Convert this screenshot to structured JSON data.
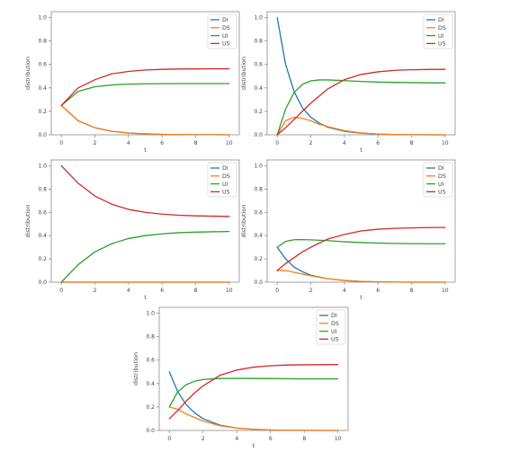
{
  "colors": {
    "DI": "#1f77b4",
    "DS": "#ff7f0e",
    "UI": "#2ca02c",
    "US": "#d62728",
    "axes_frame": "#8c8c8c",
    "text": "#444444"
  },
  "chart_data": [
    {
      "type": "line",
      "xlabel": "t",
      "ylabel": "distribution",
      "xlim": [
        -0.6,
        10.6
      ],
      "ylim": [
        0,
        1.05
      ],
      "xticks": [
        0,
        2,
        4,
        6,
        8,
        10
      ],
      "xtick_labels": [
        "0",
        "2",
        "4",
        "6",
        "8",
        "10"
      ],
      "yticks": [
        0,
        0.2,
        0.4,
        0.6,
        0.8,
        1.0
      ],
      "ytick_labels": [
        "0.0",
        "0.2",
        "0.4",
        "0.6",
        "0.8",
        "1.0"
      ],
      "grid": false,
      "legend": "top-right",
      "x": [
        0,
        1,
        2,
        3,
        4,
        5,
        6,
        7,
        8,
        9,
        10
      ],
      "series": [
        {
          "name": "DI",
          "values": [
            0.25,
            0.12,
            0.06,
            0.03,
            0.015,
            0.008,
            0.004,
            0.002,
            0.001,
            0.001,
            0.0
          ]
        },
        {
          "name": "DS",
          "values": [
            0.25,
            0.12,
            0.06,
            0.03,
            0.015,
            0.008,
            0.004,
            0.002,
            0.001,
            0.001,
            0.0
          ]
        },
        {
          "name": "UI",
          "values": [
            0.25,
            0.37,
            0.41,
            0.425,
            0.432,
            0.435,
            0.436,
            0.437,
            0.437,
            0.437,
            0.437
          ]
        },
        {
          "name": "US",
          "values": [
            0.25,
            0.4,
            0.47,
            0.52,
            0.54,
            0.553,
            0.558,
            0.561,
            0.562,
            0.563,
            0.563
          ]
        }
      ]
    },
    {
      "type": "line",
      "xlabel": "t",
      "ylabel": "distribution",
      "xlim": [
        -0.6,
        10.6
      ],
      "ylim": [
        0,
        1.05
      ],
      "xticks": [
        0,
        2,
        4,
        6,
        8,
        10
      ],
      "xtick_labels": [
        "0",
        "2",
        "4",
        "6",
        "8",
        "10"
      ],
      "yticks": [
        0,
        0.2,
        0.4,
        0.6,
        0.8,
        1.0
      ],
      "ytick_labels": [
        "0.0",
        "0.2",
        "0.4",
        "0.6",
        "0.8",
        "1.0"
      ],
      "grid": false,
      "legend": "top-right",
      "x": [
        0,
        0.5,
        1,
        1.5,
        2,
        2.5,
        3,
        4,
        5,
        6,
        7,
        8,
        9,
        10
      ],
      "series": [
        {
          "name": "DI",
          "values": [
            1.0,
            0.6,
            0.37,
            0.23,
            0.15,
            0.1,
            0.065,
            0.03,
            0.014,
            0.006,
            0.003,
            0.001,
            0.0,
            0.0
          ]
        },
        {
          "name": "DS",
          "values": [
            0.0,
            0.12,
            0.15,
            0.14,
            0.12,
            0.09,
            0.07,
            0.035,
            0.016,
            0.007,
            0.003,
            0.001,
            0.0,
            0.0
          ]
        },
        {
          "name": "UI",
          "values": [
            0.0,
            0.22,
            0.36,
            0.43,
            0.46,
            0.468,
            0.468,
            0.462,
            0.455,
            0.45,
            0.447,
            0.445,
            0.443,
            0.442
          ]
        },
        {
          "name": "US",
          "values": [
            0.0,
            0.06,
            0.13,
            0.2,
            0.27,
            0.33,
            0.39,
            0.47,
            0.515,
            0.537,
            0.55,
            0.555,
            0.557,
            0.558
          ]
        }
      ]
    },
    {
      "type": "line",
      "xlabel": "t",
      "ylabel": "distribution",
      "xlim": [
        -0.6,
        10.6
      ],
      "ylim": [
        0,
        1.05
      ],
      "xticks": [
        0,
        2,
        4,
        6,
        8,
        10
      ],
      "xtick_labels": [
        "0",
        "2",
        "4",
        "6",
        "8",
        "10"
      ],
      "yticks": [
        0,
        0.2,
        0.4,
        0.6,
        0.8,
        1.0
      ],
      "ytick_labels": [
        "0.0",
        "0.2",
        "0.4",
        "0.6",
        "0.8",
        "1.0"
      ],
      "grid": false,
      "legend": "top-right",
      "x": [
        0,
        1,
        2,
        3,
        4,
        5,
        6,
        7,
        8,
        9,
        10
      ],
      "series": [
        {
          "name": "DI",
          "values": [
            0,
            0,
            0,
            0,
            0,
            0,
            0,
            0,
            0,
            0,
            0
          ]
        },
        {
          "name": "DS",
          "values": [
            0,
            0,
            0,
            0,
            0,
            0,
            0,
            0,
            0,
            0,
            0
          ]
        },
        {
          "name": "UI",
          "values": [
            0.0,
            0.15,
            0.26,
            0.33,
            0.375,
            0.4,
            0.415,
            0.425,
            0.43,
            0.433,
            0.435
          ]
        },
        {
          "name": "US",
          "values": [
            1.0,
            0.85,
            0.74,
            0.67,
            0.625,
            0.6,
            0.585,
            0.575,
            0.57,
            0.567,
            0.565
          ]
        }
      ]
    },
    {
      "type": "line",
      "xlabel": "t",
      "ylabel": "distribution",
      "xlim": [
        -0.6,
        10.6
      ],
      "ylim": [
        0,
        1.05
      ],
      "xticks": [
        0,
        2,
        4,
        6,
        8,
        10
      ],
      "xtick_labels": [
        "0",
        "2",
        "4",
        "6",
        "8",
        "10"
      ],
      "yticks": [
        0,
        0.2,
        0.4,
        0.6,
        0.8,
        1.0
      ],
      "ytick_labels": [
        "0.0",
        "0.2",
        "0.4",
        "0.6",
        "0.8",
        "1.0"
      ],
      "grid": false,
      "legend": "top-right",
      "x": [
        0,
        0.5,
        1,
        1.5,
        2,
        3,
        4,
        5,
        6,
        7,
        8,
        9,
        10
      ],
      "series": [
        {
          "name": "DI",
          "values": [
            0.3,
            0.2,
            0.13,
            0.09,
            0.06,
            0.03,
            0.014,
            0.006,
            0.003,
            0.001,
            0.0,
            0.0,
            0.0
          ]
        },
        {
          "name": "DS",
          "values": [
            0.1,
            0.1,
            0.085,
            0.07,
            0.055,
            0.03,
            0.015,
            0.007,
            0.003,
            0.001,
            0.0,
            0.0,
            0.0
          ]
        },
        {
          "name": "UI",
          "values": [
            0.3,
            0.35,
            0.365,
            0.366,
            0.364,
            0.357,
            0.347,
            0.34,
            0.336,
            0.333,
            0.331,
            0.33,
            0.33
          ]
        },
        {
          "name": "US",
          "values": [
            0.1,
            0.16,
            0.21,
            0.26,
            0.3,
            0.37,
            0.41,
            0.44,
            0.455,
            0.462,
            0.466,
            0.469,
            0.47
          ]
        }
      ]
    },
    {
      "type": "line",
      "xlabel": "t",
      "ylabel": "distribution",
      "xlim": [
        -0.6,
        10.6
      ],
      "ylim": [
        0,
        1.05
      ],
      "xticks": [
        0,
        2,
        4,
        6,
        8,
        10
      ],
      "xtick_labels": [
        "0",
        "2",
        "4",
        "6",
        "8",
        "10"
      ],
      "yticks": [
        0,
        0.2,
        0.4,
        0.6,
        0.8,
        1.0
      ],
      "ytick_labels": [
        "0.0",
        "0.2",
        "0.4",
        "0.6",
        "0.8",
        "1.0"
      ],
      "grid": false,
      "legend": "top-right",
      "x": [
        0,
        0.5,
        1,
        1.5,
        2,
        3,
        4,
        5,
        6,
        7,
        8,
        9,
        10
      ],
      "series": [
        {
          "name": "DI",
          "values": [
            0.5,
            0.33,
            0.22,
            0.15,
            0.1,
            0.045,
            0.02,
            0.009,
            0.004,
            0.002,
            0.001,
            0.0,
            0.0
          ]
        },
        {
          "name": "DS",
          "values": [
            0.2,
            0.18,
            0.14,
            0.11,
            0.08,
            0.04,
            0.02,
            0.009,
            0.004,
            0.002,
            0.001,
            0.0,
            0.0
          ]
        },
        {
          "name": "UI",
          "values": [
            0.2,
            0.33,
            0.39,
            0.42,
            0.435,
            0.443,
            0.444,
            0.443,
            0.442,
            0.441,
            0.44,
            0.44,
            0.44
          ]
        },
        {
          "name": "US",
          "values": [
            0.1,
            0.17,
            0.25,
            0.32,
            0.38,
            0.47,
            0.515,
            0.54,
            0.552,
            0.558,
            0.56,
            0.561,
            0.562
          ]
        }
      ]
    }
  ]
}
